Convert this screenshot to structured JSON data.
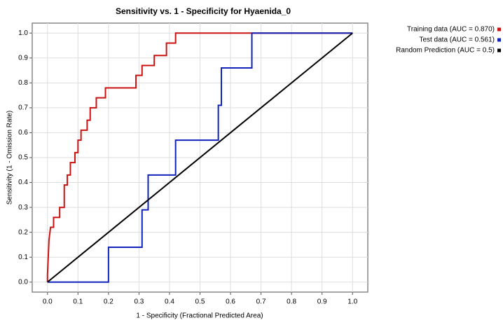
{
  "chart_data": {
    "type": "line",
    "title": "Sensitivity vs. 1 - Specificity for Hyaenida_0",
    "x_label": "1 - Specificity  (Fractional Predicted Area)",
    "y_label": "Sensitivity  (1 - Omission Rate)",
    "xlim": [
      -0.05,
      1.05
    ],
    "ylim": [
      -0.04,
      1.04
    ],
    "xticks": [
      {
        "value": 0,
        "label": "0.0"
      },
      {
        "value": 0.1,
        "label": "0.1"
      },
      {
        "value": 0.2,
        "label": "0.2"
      },
      {
        "value": 0.3,
        "label": "0.3"
      },
      {
        "value": 0.4,
        "label": "0.4"
      },
      {
        "value": 0.5,
        "label": "0.5"
      },
      {
        "value": 0.6,
        "label": "0.6"
      },
      {
        "value": 0.7,
        "label": "0.7"
      },
      {
        "value": 0.8,
        "label": "0.8"
      },
      {
        "value": 0.9,
        "label": "0.9"
      },
      {
        "value": 1,
        "label": "1.0"
      }
    ],
    "yticks": [
      {
        "value": 0,
        "label": "0.0"
      },
      {
        "value": 0.1,
        "label": "0.1"
      },
      {
        "value": 0.2,
        "label": "0.2"
      },
      {
        "value": 0.3,
        "label": "0.3"
      },
      {
        "value": 0.4,
        "label": "0.4"
      },
      {
        "value": 0.5,
        "label": "0.5"
      },
      {
        "value": 0.6,
        "label": "0.6"
      },
      {
        "value": 0.7,
        "label": "0.7"
      },
      {
        "value": 0.8,
        "label": "0.8"
      },
      {
        "value": 0.9,
        "label": "0.9"
      },
      {
        "value": 1,
        "label": "1.0"
      }
    ],
    "grid": true,
    "legend": "right",
    "series": [
      {
        "name": "Training data (AUC = 0.870)",
        "color": "#cc1111",
        "x": [
          0,
          0,
          0.005,
          0.01,
          0.02,
          0.02,
          0.04,
          0.04,
          0.055,
          0.055,
          0.065,
          0.065,
          0.075,
          0.075,
          0.09,
          0.09,
          0.1,
          0.1,
          0.11,
          0.11,
          0.13,
          0.13,
          0.14,
          0.14,
          0.16,
          0.16,
          0.19,
          0.19,
          0.29,
          0.29,
          0.31,
          0.31,
          0.35,
          0.35,
          0.39,
          0.39,
          0.42,
          0.42,
          1
        ],
        "values": [
          0,
          0.03,
          0.17,
          0.22,
          0.22,
          0.26,
          0.26,
          0.3,
          0.3,
          0.39,
          0.39,
          0.43,
          0.43,
          0.48,
          0.48,
          0.52,
          0.52,
          0.57,
          0.57,
          0.61,
          0.61,
          0.65,
          0.65,
          0.7,
          0.7,
          0.74,
          0.74,
          0.78,
          0.78,
          0.83,
          0.83,
          0.87,
          0.87,
          0.91,
          0.91,
          0.96,
          0.96,
          1,
          1
        ]
      },
      {
        "name": "Test data (AUC = 0.561)",
        "color": "#1122bb",
        "x": [
          0,
          0.2,
          0.2,
          0.31,
          0.31,
          0.33,
          0.33,
          0.42,
          0.42,
          0.56,
          0.56,
          0.57,
          0.57,
          0.67,
          0.67,
          1
        ],
        "values": [
          0,
          0,
          0.14,
          0.14,
          0.29,
          0.29,
          0.43,
          0.43,
          0.57,
          0.57,
          0.71,
          0.71,
          0.86,
          0.86,
          1,
          1
        ]
      },
      {
        "name": "Random Prediction (AUC = 0.5)",
        "color": "#000000",
        "x": [
          0,
          1
        ],
        "values": [
          0,
          1
        ]
      }
    ]
  }
}
